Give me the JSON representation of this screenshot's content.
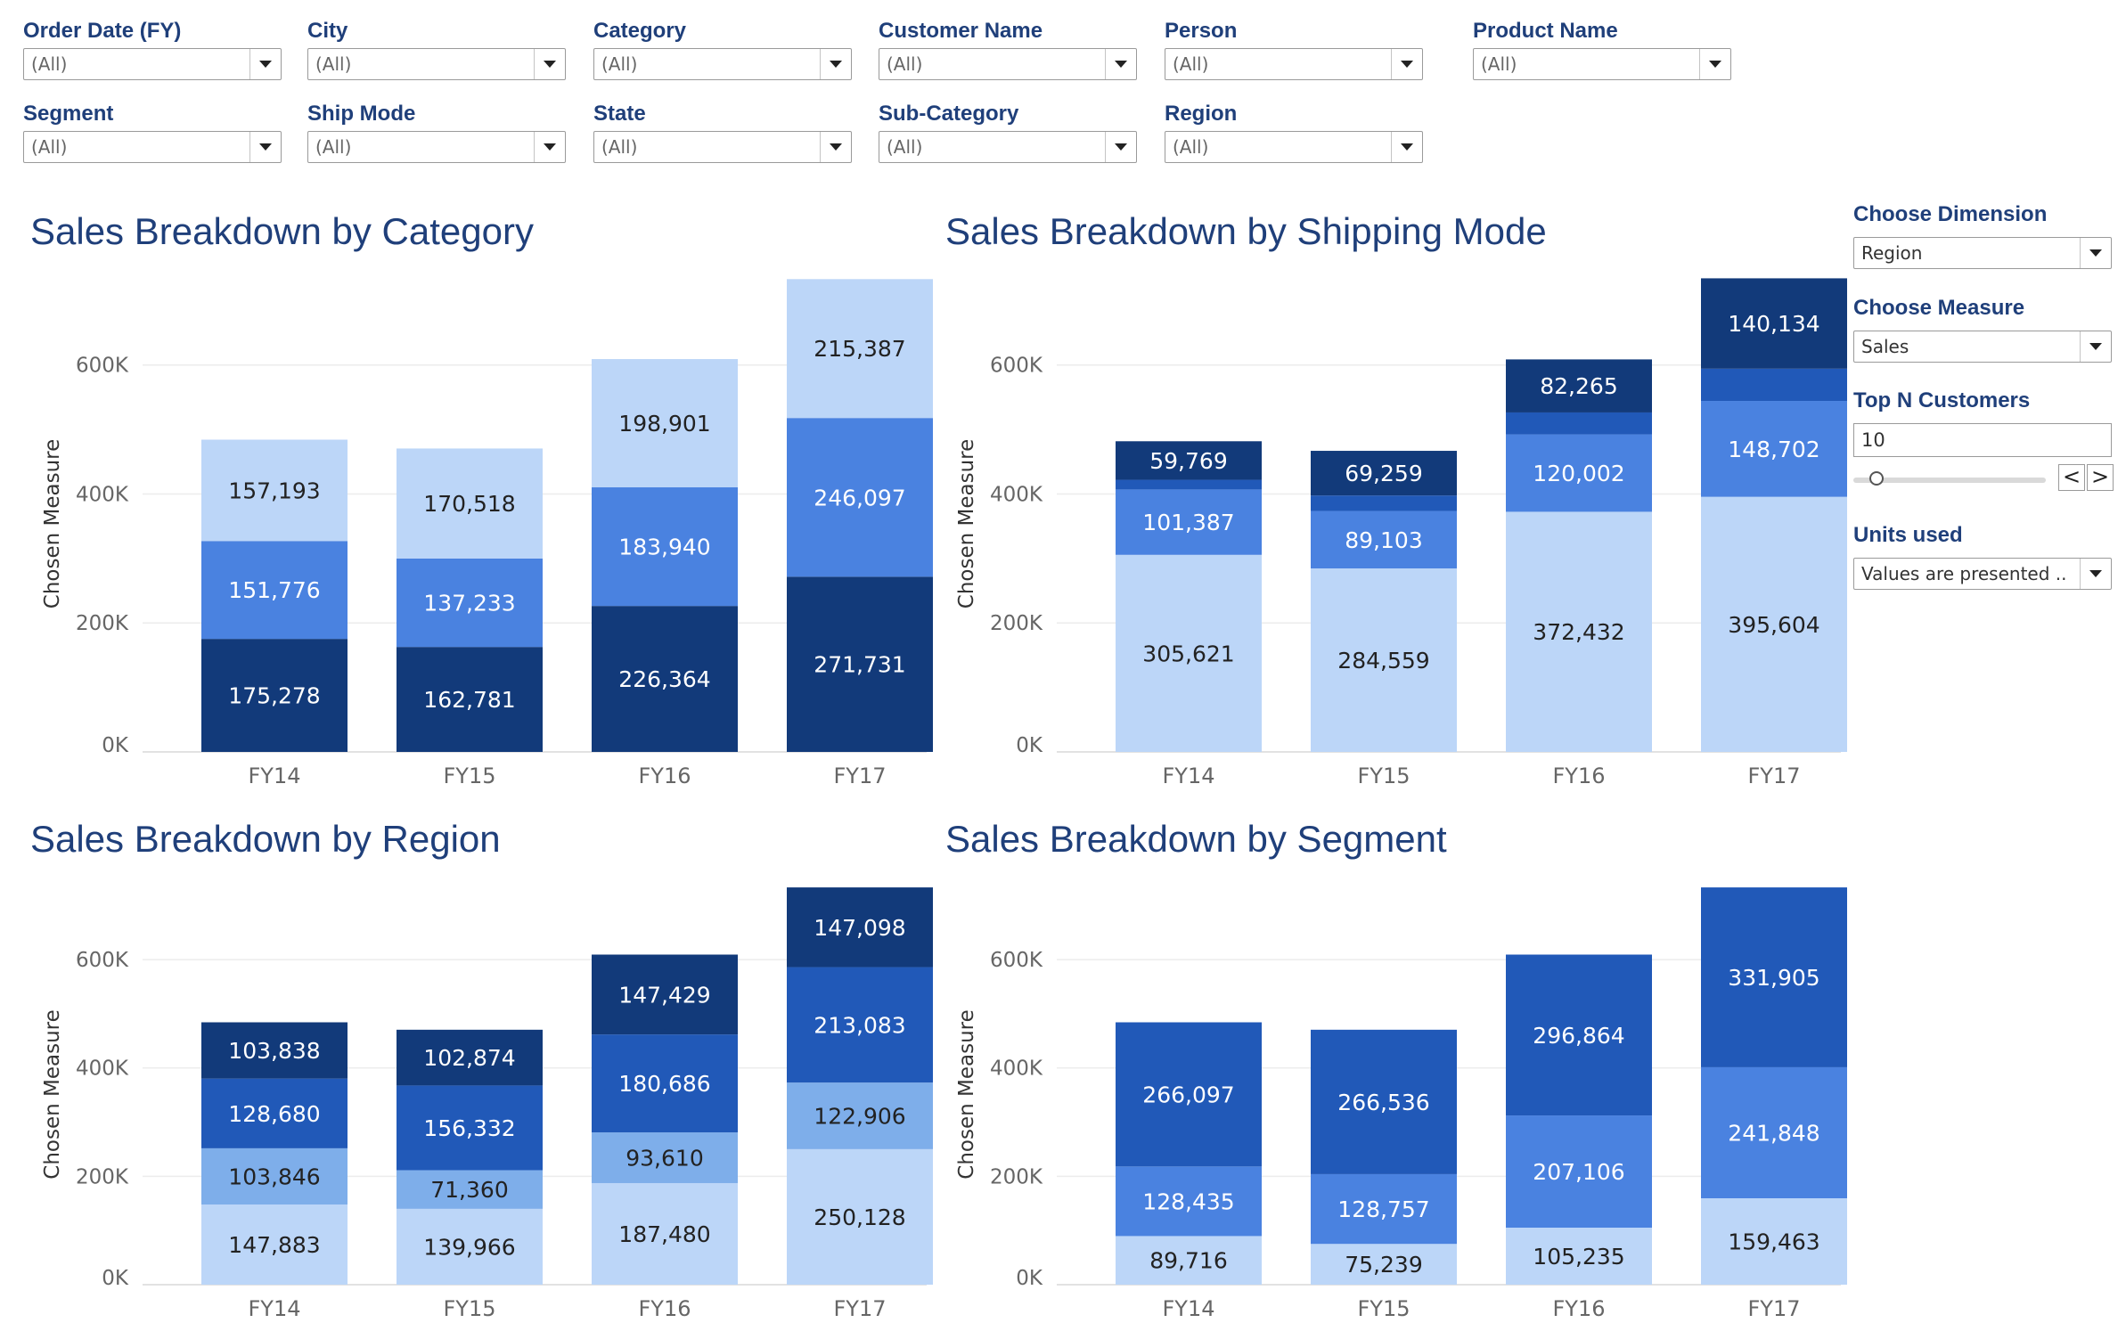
{
  "filters": [
    {
      "label": "Order Date (FY)",
      "value": "(All)",
      "x": 26,
      "y": 20
    },
    {
      "label": "City",
      "value": "(All)",
      "x": 345,
      "y": 20
    },
    {
      "label": "Category",
      "value": "(All)",
      "x": 666,
      "y": 20
    },
    {
      "label": "Customer Name",
      "value": "(All)",
      "x": 986,
      "y": 20
    },
    {
      "label": "Person",
      "value": "(All)",
      "x": 1307,
      "y": 20
    },
    {
      "label": "Product Name",
      "value": "(All)",
      "x": 1653,
      "y": 20
    },
    {
      "label": "Segment",
      "value": "(All)",
      "x": 26,
      "y": 113
    },
    {
      "label": "Ship Mode",
      "value": "(All)",
      "x": 345,
      "y": 113
    },
    {
      "label": "State",
      "value": "(All)",
      "x": 666,
      "y": 113
    },
    {
      "label": "Sub-Category",
      "value": "(All)",
      "x": 986,
      "y": 113
    },
    {
      "label": "Region",
      "value": "(All)",
      "x": 1307,
      "y": 113
    }
  ],
  "side": {
    "dimension_label": "Choose Dimension",
    "dimension_value": "Region",
    "measure_label": "Choose Measure",
    "measure_value": "Sales",
    "topn_label": "Top N Customers",
    "topn_value": "10",
    "slider_prev": "<",
    "slider_next": ">",
    "units_label": "Units used",
    "units_value": "Values are presented ..."
  },
  "colors": {
    "light": "#bcd6f8",
    "mid": "#4a82e0",
    "dark": "#123a7a",
    "midalt": "#2159b8",
    "pale": "#7eaeea"
  },
  "chart_data": [
    {
      "type": "bar",
      "stacked": true,
      "title": "Sales Breakdown by Category",
      "ylabel": "Chosen Measure",
      "categories": [
        "FY14",
        "FY15",
        "FY16",
        "FY17"
      ],
      "yticks": [
        "0K",
        "200K",
        "400K",
        "600K"
      ],
      "ylim": [
        0,
        735000
      ],
      "series": [
        {
          "values": [
            175278,
            162781,
            226364,
            271731
          ],
          "color": "#123a7a",
          "label_color": "#ffffff"
        },
        {
          "values": [
            151776,
            137233,
            183940,
            246097
          ],
          "color": "#4a82e0",
          "label_color": "#ffffff"
        },
        {
          "values": [
            157193,
            170518,
            198901,
            215387
          ],
          "color": "#bcd6f8",
          "label_color": "#222222"
        }
      ]
    },
    {
      "type": "bar",
      "stacked": true,
      "title": "Sales Breakdown by Shipping Mode",
      "ylabel": "Chosen Measure",
      "categories": [
        "FY14",
        "FY15",
        "FY16",
        "FY17"
      ],
      "yticks": [
        "0K",
        "200K",
        "400K",
        "600K"
      ],
      "ylim": [
        0,
        735000
      ],
      "series": [
        {
          "values": [
            305621,
            284559,
            372432,
            395604
          ],
          "color": "#bcd6f8",
          "label_color": "#222222"
        },
        {
          "values": [
            101387,
            89103,
            120002,
            148702
          ],
          "color": "#4a82e0",
          "label_color": "#ffffff"
        },
        {
          "values": [
            15000,
            24000,
            34000,
            50000
          ],
          "color": "#2159b8",
          "label_color": "#ffffff",
          "hide_labels": true
        },
        {
          "values": [
            59769,
            69259,
            82265,
            140134
          ],
          "color": "#123a7a",
          "label_color": "#ffffff"
        }
      ]
    },
    {
      "type": "bar",
      "stacked": true,
      "title": "Sales Breakdown by Region",
      "ylabel": "Chosen Measure",
      "categories": [
        "FY14",
        "FY15",
        "FY16",
        "FY17"
      ],
      "yticks": [
        "0K",
        "200K",
        "400K",
        "600K"
      ],
      "ylim": [
        0,
        735000
      ],
      "series": [
        {
          "values": [
            147883,
            139966,
            187480,
            250128
          ],
          "color": "#bcd6f8",
          "label_color": "#222222"
        },
        {
          "values": [
            103846,
            71360,
            93610,
            122906
          ],
          "color": "#7eaeea",
          "label_color": "#222222"
        },
        {
          "values": [
            128680,
            156332,
            180686,
            213083
          ],
          "color": "#2159b8",
          "label_color": "#ffffff"
        },
        {
          "values": [
            103838,
            102874,
            147429,
            147098
          ],
          "color": "#123a7a",
          "label_color": "#ffffff"
        }
      ]
    },
    {
      "type": "bar",
      "stacked": true,
      "title": "Sales Breakdown by Segment",
      "ylabel": "Chosen Measure",
      "categories": [
        "FY14",
        "FY15",
        "FY16",
        "FY17"
      ],
      "yticks": [
        "0K",
        "200K",
        "400K",
        "600K"
      ],
      "ylim": [
        0,
        735000
      ],
      "series": [
        {
          "values": [
            89716,
            75239,
            105235,
            159463
          ],
          "color": "#bcd6f8",
          "label_color": "#222222"
        },
        {
          "values": [
            128435,
            128757,
            207106,
            241848
          ],
          "color": "#4a82e0",
          "label_color": "#ffffff"
        },
        {
          "values": [
            266097,
            266536,
            296864,
            331905
          ],
          "color": "#2159b8",
          "label_color": "#ffffff"
        }
      ]
    }
  ]
}
